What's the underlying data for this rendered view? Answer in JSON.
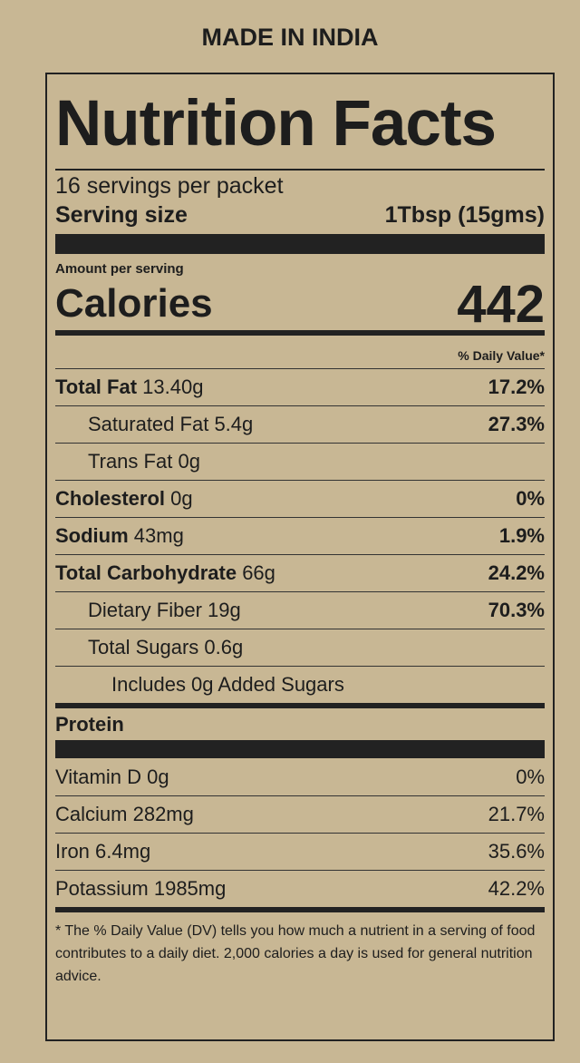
{
  "header": "MADE IN INDIA",
  "title": "Nutrition Facts",
  "servings": "16 servings per packet",
  "serving_size": {
    "label": "Serving size",
    "value": "1Tbsp (15gms)"
  },
  "amount_per_serving": "Amount per serving",
  "calories": {
    "label": "Calories",
    "value": "442"
  },
  "daily_value_header": "% Daily Value*",
  "nutrients": [
    {
      "name": "Total Fat",
      "amount": "13.40g",
      "dv": "17.2%"
    },
    {
      "name": "Saturated Fat",
      "amount": "5.4g",
      "dv": "27.3%"
    },
    {
      "name": "Trans Fat",
      "amount": "0g"
    },
    {
      "name": "Cholesterol",
      "amount": "0g",
      "dv": "0%"
    },
    {
      "name": "Sodium",
      "amount": "43mg",
      "dv": "1.9%"
    },
    {
      "name": "Total Carbohydrate",
      "amount": "66g",
      "dv": "24.2%"
    },
    {
      "name": "Dietary Fiber",
      "amount": "19g",
      "dv": "70.3%"
    },
    {
      "name": "Total Sugars",
      "amount": "0.6g"
    },
    {
      "name": "Includes 0g Added Sugars"
    },
    {
      "name": "Protein"
    }
  ],
  "vitamins": [
    {
      "name": "Vitamin D",
      "amount": "0g",
      "dv": "0%"
    },
    {
      "name": "Calcium",
      "amount": "282mg",
      "dv": "21.7%"
    },
    {
      "name": "Iron",
      "amount": "6.4mg",
      "dv": "35.6%"
    },
    {
      "name": "Potassium",
      "amount": "1985mg",
      "dv": "42.2%"
    }
  ],
  "footnote": "* The % Daily Value (DV) tells you how much a nutrient in a serving of food contributes to a daily diet. 2,000 calories a day is used for general nutrition advice."
}
